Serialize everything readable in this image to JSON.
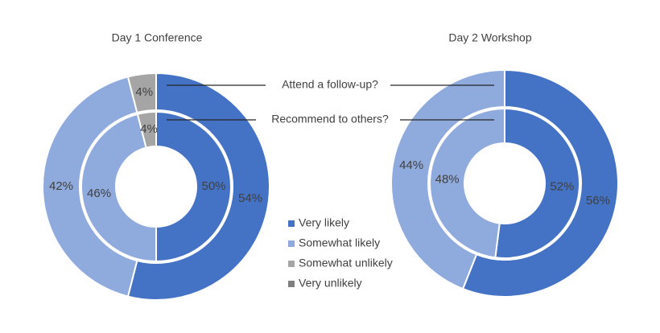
{
  "ring_labels": [
    "Attend a follow-up?",
    "Recommend to others?"
  ],
  "legend": {
    "categories": [
      "Very likely",
      "Somewhat likely",
      "Somewhat unlikely",
      "Very unlikely"
    ],
    "colors": [
      "#4472c4",
      "#8faadc",
      "#a5a5a5",
      "#7f7f7f"
    ]
  },
  "chart_data": [
    {
      "type": "pie",
      "title": "Day 1 Conference",
      "series": [
        {
          "values": [
            54,
            42,
            4,
            0
          ],
          "value_labels": [
            "54%",
            "42%",
            "4%",
            null
          ]
        },
        {
          "values": [
            50,
            46,
            4,
            0
          ],
          "value_labels": [
            "50%",
            "46%",
            "4%",
            null
          ]
        }
      ]
    },
    {
      "type": "pie",
      "title": "Day 2 Workshop",
      "series": [
        {
          "values": [
            56,
            44,
            0,
            0
          ],
          "value_labels": [
            "56%",
            "44%",
            null,
            null
          ]
        },
        {
          "values": [
            52,
            48,
            0,
            0
          ],
          "value_labels": [
            "52%",
            "48%",
            null,
            null
          ]
        }
      ]
    }
  ]
}
